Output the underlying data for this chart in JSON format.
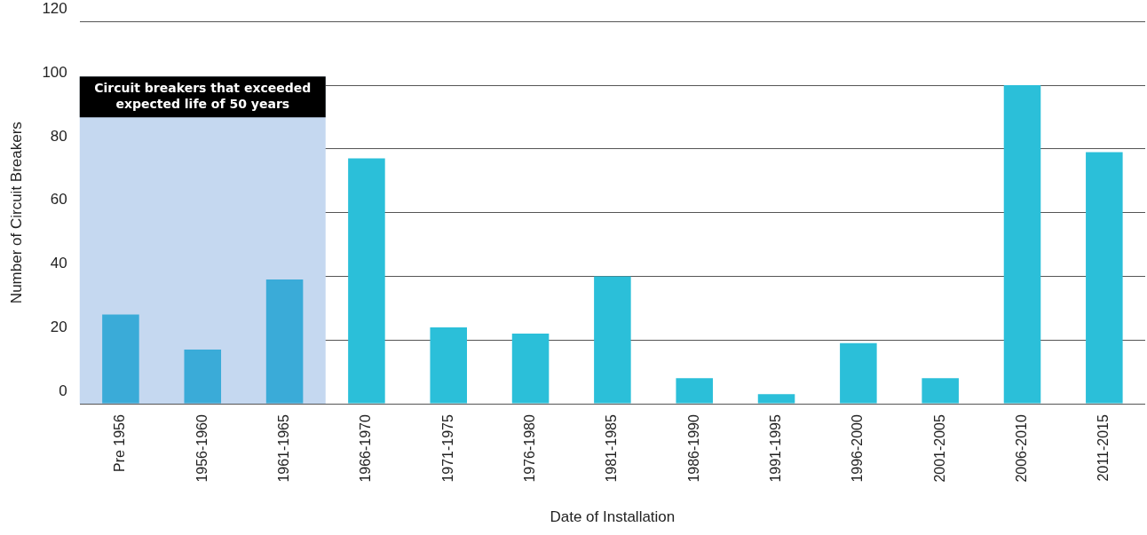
{
  "chart_data": {
    "type": "bar",
    "xlabel": "Date of Installation",
    "ylabel": "Number of Circuit Breakers",
    "categories": [
      "Pre 1956",
      "1956-1960",
      "1961-1965",
      "1966-1970",
      "1971-1975",
      "1976-1980",
      "1981-1985",
      "1986-1990",
      "1991-1995",
      "1996-2000",
      "2001-2005",
      "2006-2010",
      "2011-2015"
    ],
    "values": [
      28,
      17,
      39,
      77,
      24,
      22,
      40,
      8,
      3,
      19,
      8,
      100,
      79
    ],
    "colors": [
      "#3aabd8",
      "#3aabd8",
      "#3aabd8",
      "#2bbfd9",
      "#2bbfd9",
      "#2bbfd9",
      "#2bbfd9",
      "#2bbfd9",
      "#2bbfd9",
      "#2bbfd9",
      "#2bbfd9",
      "#2bbfd9",
      "#2bbfd9"
    ],
    "ylim": [
      0,
      120
    ],
    "yticks": [
      0,
      20,
      40,
      60,
      80,
      100,
      120
    ],
    "grid": "y",
    "bands": [
      {
        "axis": "x",
        "from": "Pre 1956",
        "to": "1961-1965",
        "label": "Circuit breakers that exceeded expected life of 50 years",
        "color": "#c5d8f0"
      }
    ]
  }
}
